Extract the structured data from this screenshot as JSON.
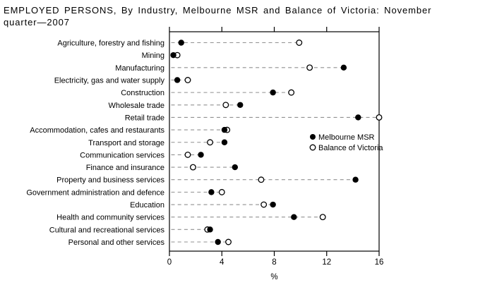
{
  "title": {
    "line1": "EMPLOYED PERSONS, By Industry, Melbourne MSR and Balance of Victoria: November",
    "line2": "quarter—2007"
  },
  "chart_data": {
    "type": "scatter",
    "subtype": "horizontal-dot-plot",
    "categories": [
      "Agriculture, forestry and fishing",
      "Mining",
      "Manufacturing",
      "Electricity, gas and water supply",
      "Construction",
      "Wholesale trade",
      "Retail trade",
      "Accommodation, cafes and restaurants",
      "Transport and storage",
      "Communication services",
      "Finance and insurance",
      "Property and business services",
      "Government administration and defence",
      "Education",
      "Health and community services",
      "Cultural and recreational services",
      "Personal and other services"
    ],
    "series": [
      {
        "name": "Melbourne MSR",
        "marker": "filled-circle",
        "values": [
          0.9,
          0.3,
          13.3,
          0.6,
          7.9,
          5.4,
          14.4,
          4.2,
          4.2,
          2.4,
          5.0,
          14.2,
          3.2,
          7.9,
          9.5,
          3.1,
          3.7
        ]
      },
      {
        "name": "Balance of Victoria",
        "marker": "open-circle",
        "values": [
          9.9,
          0.6,
          10.7,
          1.4,
          9.3,
          4.3,
          16.0,
          4.4,
          3.1,
          1.4,
          1.8,
          7.0,
          4.0,
          7.2,
          11.7,
          2.9,
          4.5
        ]
      }
    ],
    "xlabel": "%",
    "x_ticks": [
      0,
      4,
      8,
      12,
      16
    ],
    "xlim": [
      0,
      16
    ],
    "grid": "dashed-leader-lines",
    "legend": {
      "position": "inside-right",
      "entries": [
        "Melbourne MSR",
        "Balance of Victoria"
      ]
    },
    "colors": {
      "marker": "#000000",
      "leader_line": "#909090",
      "frame": "#000000",
      "background": "#ffffff"
    }
  }
}
